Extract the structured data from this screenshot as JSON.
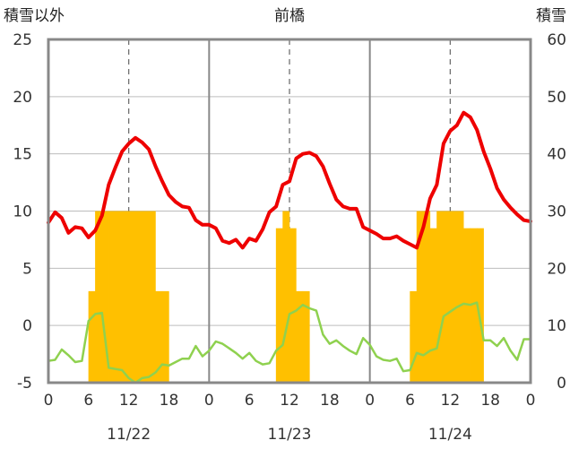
{
  "chart_data": {
    "type": "bar+line",
    "title": "前橋",
    "left_axis_label": "積雪以外",
    "right_axis_label": "積雪",
    "left_ylim": [
      -5,
      25
    ],
    "left_ticks": [
      "-5",
      "0",
      "5",
      "10",
      "15",
      "20",
      "25"
    ],
    "right_ylim": [
      0,
      60
    ],
    "right_ticks": [
      "0",
      "10",
      "20",
      "30",
      "40",
      "50",
      "60"
    ],
    "x_range_hours": [
      0,
      72
    ],
    "x_tick_labels": [
      "0",
      "6",
      "12",
      "18",
      "0",
      "6",
      "12",
      "18",
      "0",
      "6",
      "12",
      "18",
      "0"
    ],
    "day_labels": [
      "11/22",
      "11/23",
      "11/24"
    ],
    "grid": true,
    "colors": {
      "temperature": "#ee0000",
      "other": "#8fd14f",
      "snow_depth": "#ffc000"
    },
    "series": [
      {
        "kind": "bar",
        "axis": "right",
        "x": [
          6,
          7,
          8,
          9,
          10,
          11,
          12,
          13,
          14,
          15,
          16,
          17,
          34,
          35,
          36,
          37,
          38,
          54,
          55,
          56,
          57,
          58,
          59,
          60,
          61,
          62,
          63,
          64
        ],
        "values": [
          16,
          30,
          30,
          30,
          30,
          30,
          30,
          30,
          30,
          30,
          16,
          16,
          27,
          30,
          27,
          16,
          16,
          16,
          30,
          30,
          27,
          30,
          30,
          30,
          30,
          27,
          27,
          27
        ]
      },
      {
        "kind": "line",
        "axis": "left",
        "x": [
          0,
          1,
          2,
          3,
          4,
          5,
          6,
          7,
          8,
          9,
          10,
          11,
          12,
          13,
          14,
          15,
          16,
          17,
          18,
          19,
          20,
          21,
          22,
          23,
          24,
          25,
          26,
          27,
          28,
          29,
          30,
          31,
          32,
          33,
          34,
          35,
          36,
          37,
          38,
          39,
          40,
          41,
          42,
          43,
          44,
          45,
          46,
          47,
          48,
          49,
          50,
          51,
          52,
          53,
          54,
          55,
          56,
          57,
          58,
          59,
          60,
          61,
          62,
          63,
          64,
          65,
          66,
          67,
          68,
          69,
          70,
          71,
          72
        ],
        "values": [
          9.0,
          9.9,
          9.4,
          8.1,
          8.6,
          8.5,
          7.7,
          8.3,
          9.6,
          12.3,
          13.8,
          15.2,
          15.9,
          16.4,
          16.0,
          15.4,
          13.9,
          12.6,
          11.4,
          10.8,
          10.4,
          10.3,
          9.2,
          8.8,
          8.8,
          8.5,
          7.4,
          7.2,
          7.5,
          6.8,
          7.6,
          7.4,
          8.4,
          9.9,
          10.4,
          12.3,
          12.6,
          14.6,
          15.0,
          15.1,
          14.8,
          13.9,
          12.4,
          11.0,
          10.4,
          10.2,
          10.2,
          8.6,
          8.3,
          8.0,
          7.6,
          7.6,
          7.8,
          7.4,
          7.1,
          6.8,
          8.6,
          11.1,
          12.3,
          15.9,
          17.0,
          17.5,
          18.6,
          18.2,
          17.1,
          15.2,
          13.7,
          12.0,
          11.0,
          10.3,
          9.7,
          9.2,
          9.1
        ]
      },
      {
        "kind": "line",
        "axis": "left",
        "x": [
          0,
          1,
          2,
          3,
          4,
          5,
          6,
          7,
          8,
          9,
          10,
          11,
          12,
          13,
          14,
          15,
          16,
          17,
          18,
          19,
          20,
          21,
          22,
          23,
          24,
          25,
          26,
          27,
          28,
          29,
          30,
          31,
          32,
          33,
          34,
          35,
          36,
          37,
          38,
          39,
          40,
          41,
          42,
          43,
          44,
          45,
          46,
          47,
          48,
          49,
          50,
          51,
          52,
          53,
          54,
          55,
          56,
          57,
          58,
          59,
          60,
          61,
          62,
          63,
          64,
          65,
          66,
          67,
          68,
          69,
          70,
          71,
          72
        ],
        "values": [
          -3.1,
          -3.0,
          -2.1,
          -2.6,
          -3.2,
          -3.1,
          0.4,
          1.0,
          1.1,
          -3.7,
          -3.8,
          -3.9,
          -4.6,
          -5.0,
          -4.6,
          -4.5,
          -4.1,
          -3.4,
          -3.5,
          -3.2,
          -2.9,
          -2.9,
          -1.8,
          -2.7,
          -2.2,
          -1.4,
          -1.6,
          -2.0,
          -2.4,
          -2.9,
          -2.4,
          -3.1,
          -3.4,
          -3.3,
          -2.2,
          -1.7,
          1.0,
          1.3,
          1.8,
          1.5,
          1.3,
          -0.8,
          -1.6,
          -1.3,
          -1.8,
          -2.2,
          -2.5,
          -1.1,
          -1.7,
          -2.7,
          -3.0,
          -3.1,
          -2.9,
          -4.0,
          -3.9,
          -2.4,
          -2.6,
          -2.2,
          -2.0,
          0.8,
          1.2,
          1.6,
          1.9,
          1.8,
          2.0,
          -1.3,
          -1.3,
          -1.8,
          -1.1,
          -2.2,
          -3.0,
          -1.2,
          -1.2
        ]
      }
    ]
  }
}
